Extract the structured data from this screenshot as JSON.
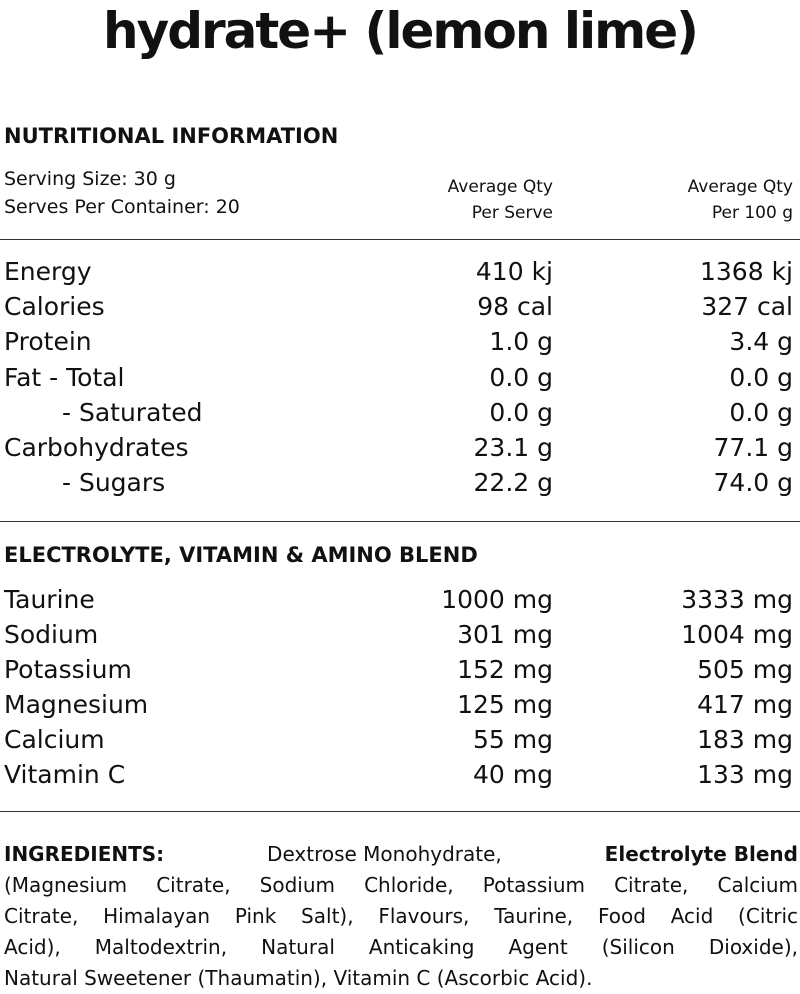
{
  "title": "hydrate+ (lemon lime)",
  "nutrition": {
    "heading": "NUTRITIONAL INFORMATION",
    "serving_size": "Serving Size: 30 g",
    "serves_per_container": "Serves Per Container: 20",
    "columns": [
      [
        "Average Qty",
        "Per Serve"
      ],
      [
        "Average Qty",
        "Per 100 g"
      ]
    ],
    "rows": [
      [
        "Energy",
        "410 kj",
        "1368 kj"
      ],
      [
        "Calories",
        "98 cal",
        "327 cal"
      ],
      [
        "Protein",
        "1.0 g",
        "3.4 g"
      ],
      [
        "Fat - Total",
        "0.0 g",
        "0.0 g"
      ],
      [
        "- Saturated",
        "0.0 g",
        "0.0 g"
      ],
      [
        "Carbohydrates",
        "23.1 g",
        "77.1 g"
      ],
      [
        "- Sugars",
        "22.2 g",
        "74.0 g"
      ]
    ]
  },
  "blend": {
    "heading": "ELECTROLYTE, VITAMIN & AMINO BLEND",
    "rows": [
      [
        "Taurine",
        "1000 mg",
        "3333 mg"
      ],
      [
        "Sodium",
        "301 mg",
        "1004 mg"
      ],
      [
        "Potassium",
        "152 mg",
        "505 mg"
      ],
      [
        "Magnesium",
        "125 mg",
        "417 mg"
      ],
      [
        "Calcium",
        "55 mg",
        "183 mg"
      ],
      [
        "Vitamin C",
        "40 mg",
        "133 mg"
      ]
    ]
  },
  "ingredients": {
    "first_line": [
      "INGREDIENTS:",
      "Dextrose Monohydrate,",
      "Electrolyte Blend"
    ],
    "lines": [
      "(Magnesium Citrate, Sodium Chloride, Potassium Citrate, Calcium",
      "Citrate, Himalayan Pink Salt), Flavours, Taurine, Food Acid (Citric",
      "Acid), Maltodextrin, Natural Anticaking Agent (Silicon Dioxide),",
      "Natural Sweetener (Thaumatin), Vitamin C (Ascorbic Acid)."
    ]
  }
}
